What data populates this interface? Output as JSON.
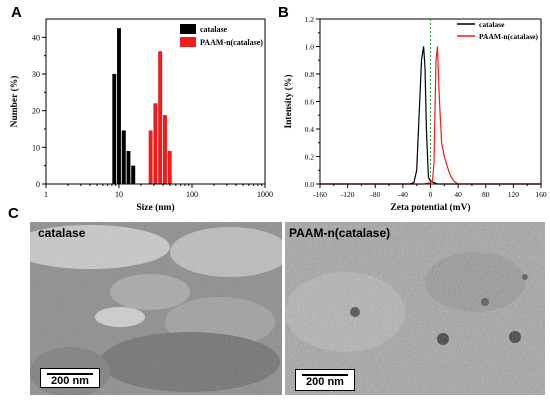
{
  "panels": {
    "a": "A",
    "b": "B",
    "c": "C"
  },
  "chart_data": [
    {
      "type": "bar",
      "xscale": "log",
      "xlabel": "Size (nm)",
      "ylabel": "Number (%)",
      "xlim": [
        1,
        1000
      ],
      "ylim": [
        0,
        45
      ],
      "xticks": [
        1,
        10,
        100,
        1000
      ],
      "yticks": [
        0,
        10,
        20,
        30,
        40
      ],
      "legend_position": "top-right",
      "series": [
        {
          "name": "catalase",
          "color": "#000000",
          "bins": [
            [
              8.1,
              9.4,
              30
            ],
            [
              9.4,
              10.9,
              42.5
            ],
            [
              10.9,
              12.7,
              14.6
            ],
            [
              12.7,
              14.7,
              9
            ],
            [
              14.7,
              17.1,
              5
            ]
          ]
        },
        {
          "name": "PAAM-n(catalase)",
          "color": "#ee1c1c",
          "bins": [
            [
              25.5,
              29.6,
              14.6
            ],
            [
              29.6,
              34.4,
              22
            ],
            [
              34.4,
              40,
              36.2
            ],
            [
              40,
              46.5,
              18.8
            ],
            [
              46.5,
              54,
              9
            ]
          ]
        }
      ]
    },
    {
      "type": "line",
      "xlabel": "Zeta potential (mV)",
      "ylabel": "Intensity (%)",
      "xlim": [
        -160,
        160
      ],
      "ylim": [
        0,
        1.2
      ],
      "xticks": [
        -160,
        -120,
        -80,
        -40,
        0,
        40,
        80,
        120,
        160
      ],
      "yticks": [
        0,
        0.2,
        0.4,
        0.6,
        0.8,
        1.0,
        1.2
      ],
      "ytick_labels": [
        "0.0",
        "0.2",
        "0.4",
        "0.6",
        "0.8",
        "1.0",
        "1.2"
      ],
      "vline": {
        "x": 0,
        "color": "#2ab24a",
        "style": "dashed"
      },
      "legend_position": "top-right",
      "series": [
        {
          "name": "catalase",
          "color": "#000000",
          "x": [
            -160,
            -30,
            -24,
            -20,
            -16,
            -13,
            -10,
            -8,
            -6,
            -3,
            0,
            5,
            10,
            160
          ],
          "y": [
            0,
            0,
            0.01,
            0.1,
            0.55,
            0.9,
            1.0,
            0.85,
            0.4,
            0.05,
            0.02,
            0.01,
            0,
            0
          ]
        },
        {
          "name": "PAAM-n(catalase)",
          "color": "#ee1c1c",
          "x": [
            -160,
            -10,
            -5,
            0,
            3,
            5,
            6,
            8,
            10,
            13,
            16,
            20,
            23,
            26,
            30,
            34,
            40,
            160
          ],
          "y": [
            0,
            0,
            0.005,
            0.01,
            0.03,
            0.15,
            0.4,
            0.9,
            1.0,
            0.6,
            0.3,
            0.2,
            0.15,
            0.1,
            0.05,
            0.02,
            0,
            0
          ]
        }
      ]
    }
  ],
  "tem": {
    "left_label": "catalase",
    "right_label": "PAAM-n(catalase)",
    "left_scale": "200 nm",
    "right_scale": "200 nm"
  }
}
